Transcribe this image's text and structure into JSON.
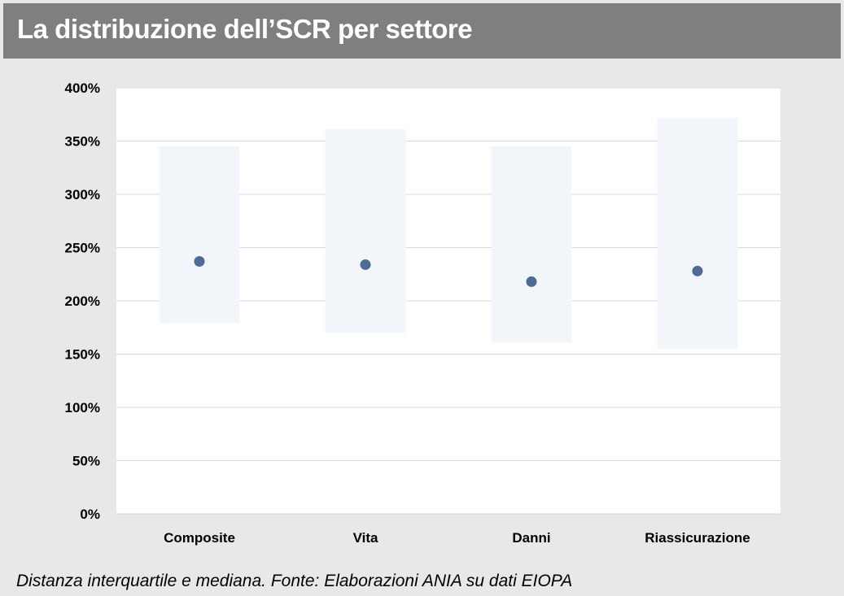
{
  "title": "La distribuzione dell’SCR per settore",
  "caption": "Distanza interquartile e mediana. Fonte: Elaborazioni ANIA su dati EIOPA",
  "colors": {
    "title_bar": "#7f7f7f",
    "page_background": "#e8e8e8",
    "plot_background": "#ffffff",
    "iqr_band": "#f2f5fa",
    "median_marker": "#4e6a96",
    "gridline": "#d9d9d9"
  },
  "chart_data": {
    "type": "scatter",
    "categories": [
      "Composite",
      "Vita",
      "Danni",
      "Riassicurazione"
    ],
    "series": [
      {
        "values": [
          237,
          234,
          218,
          228
        ]
      }
    ],
    "ranges": [
      {
        "low": 179,
        "high": 345
      },
      {
        "low": 170,
        "high": 361
      },
      {
        "low": 161,
        "high": 345
      },
      {
        "low": 155,
        "high": 372
      }
    ],
    "ylim": [
      0,
      400
    ],
    "yticks": [
      0,
      50,
      100,
      150,
      200,
      250,
      300,
      350,
      400
    ],
    "ytick_labels": [
      "0%",
      "50%",
      "100%",
      "150%",
      "200%",
      "250%",
      "300%",
      "350%",
      "400%"
    ],
    "y_unit": "%",
    "grid": true,
    "legend": "none",
    "xlabel": "",
    "ylabel": ""
  }
}
